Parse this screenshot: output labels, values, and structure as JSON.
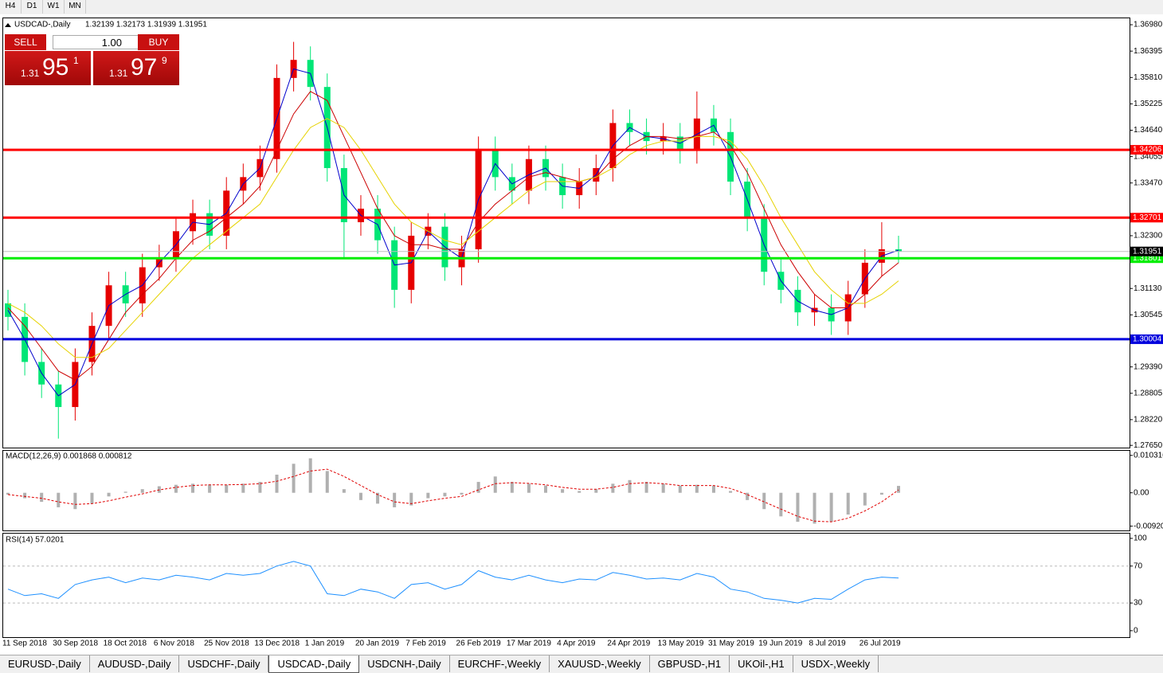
{
  "toolbar": [
    "H4",
    "D1",
    "W1",
    "MN"
  ],
  "trade_panel": {
    "sell": "SELL",
    "lot": "1.00",
    "buy": "BUY",
    "bid": {
      "big": "1.31",
      "main": "95",
      "small": "1"
    },
    "ask": {
      "big": "1.31",
      "main": "97",
      "small": "9"
    }
  },
  "chart_data": [
    {
      "type": "candlestick",
      "title": "USDCAD-,Daily",
      "ohlc_text": "1.32139 1.32173 1.31939 1.31951",
      "categories": [
        "11 Sep 2018",
        null,
        null,
        "30 Sep 2018",
        null,
        null,
        "18 Oct 2018",
        null,
        null,
        "6 Nov 2018",
        null,
        null,
        "25 Nov 2018",
        null,
        null,
        "13 Dec 2018",
        null,
        null,
        "1 Jan 2019",
        null,
        null,
        "20 Jan 2019",
        null,
        null,
        "7 Feb 2019",
        null,
        null,
        "26 Feb 2019",
        null,
        null,
        "17 Mar 2019",
        null,
        null,
        "4 Apr 2019",
        null,
        null,
        "24 Apr 2019",
        null,
        null,
        "13 May 2019",
        null,
        null,
        "31 May 2019",
        null,
        null,
        "19 Jun 2019",
        null,
        null,
        "8 Jul 2019",
        null,
        null,
        "26 Jul 2019",
        null,
        null
      ],
      "open": [
        1.308,
        1.305,
        1.295,
        1.29,
        1.285,
        1.295,
        1.303,
        1.312,
        1.308,
        1.316,
        1.318,
        1.324,
        1.328,
        1.323,
        1.333,
        1.336,
        1.34,
        1.358,
        1.362,
        1.356,
        1.338,
        1.326,
        1.329,
        1.322,
        1.311,
        1.323,
        1.325,
        1.316,
        1.32,
        1.342,
        1.336,
        1.333,
        1.34,
        1.336,
        1.332,
        1.335,
        1.338,
        1.348,
        1.346,
        1.344,
        1.345,
        1.342,
        1.349,
        1.346,
        1.335,
        1.327,
        1.315,
        1.311,
        1.306,
        1.307,
        1.304,
        1.31,
        1.317,
        1.32
      ],
      "high": [
        1.311,
        1.308,
        1.298,
        1.293,
        1.298,
        1.306,
        1.315,
        1.315,
        1.319,
        1.321,
        1.327,
        1.331,
        1.331,
        1.336,
        1.339,
        1.343,
        1.361,
        1.366,
        1.365,
        1.359,
        1.341,
        1.332,
        1.332,
        1.325,
        1.326,
        1.328,
        1.328,
        1.323,
        1.345,
        1.345,
        1.339,
        1.343,
        1.343,
        1.339,
        1.338,
        1.341,
        1.351,
        1.351,
        1.349,
        1.348,
        1.348,
        1.355,
        1.352,
        1.349,
        1.338,
        1.33,
        1.318,
        1.314,
        1.31,
        1.31,
        1.313,
        1.32,
        1.326,
        1.323
      ],
      "low": [
        1.302,
        1.292,
        1.287,
        1.278,
        1.282,
        1.292,
        1.3,
        1.305,
        1.305,
        1.313,
        1.315,
        1.321,
        1.32,
        1.32,
        1.33,
        1.333,
        1.337,
        1.355,
        1.353,
        1.335,
        1.318,
        1.323,
        1.319,
        1.307,
        1.308,
        1.32,
        1.313,
        1.312,
        1.317,
        1.333,
        1.33,
        1.33,
        1.333,
        1.329,
        1.329,
        1.332,
        1.335,
        1.343,
        1.341,
        1.341,
        1.339,
        1.339,
        1.343,
        1.332,
        1.324,
        1.312,
        1.308,
        1.303,
        1.303,
        1.301,
        1.301,
        1.307,
        1.314,
        1.317
      ],
      "close": [
        1.305,
        1.295,
        1.29,
        1.285,
        1.295,
        1.303,
        1.312,
        1.308,
        1.316,
        1.318,
        1.324,
        1.328,
        1.323,
        1.333,
        1.336,
        1.34,
        1.358,
        1.362,
        1.356,
        1.338,
        1.326,
        1.329,
        1.322,
        1.311,
        1.323,
        1.325,
        1.316,
        1.32,
        1.342,
        1.336,
        1.333,
        1.34,
        1.336,
        1.332,
        1.335,
        1.338,
        1.348,
        1.346,
        1.344,
        1.345,
        1.342,
        1.349,
        1.346,
        1.335,
        1.327,
        1.315,
        1.311,
        1.306,
        1.307,
        1.304,
        1.31,
        1.317,
        1.32,
        1.3195
      ],
      "up_color": "#e60000",
      "down_color": "#00e676",
      "series": [
        {
          "color": "#0000cc",
          "values": [
            1.3065,
            1.3,
            1.2925,
            1.2875,
            1.29,
            1.299,
            1.3075,
            1.31,
            1.312,
            1.317,
            1.321,
            1.326,
            1.3255,
            1.328,
            1.3345,
            1.338,
            1.349,
            1.36,
            1.359,
            1.347,
            1.332,
            1.3275,
            1.3255,
            1.3165,
            1.317,
            1.324,
            1.3205,
            1.318,
            1.331,
            1.339,
            1.3345,
            1.3365,
            1.338,
            1.334,
            1.3335,
            1.3365,
            1.343,
            1.347,
            1.345,
            1.3445,
            1.3435,
            1.3455,
            1.3475,
            1.3405,
            1.331,
            1.321,
            1.313,
            1.3085,
            1.3065,
            1.3055,
            1.307,
            1.3135,
            1.3185,
            1.3198
          ]
        },
        {
          "color": "#cc0000",
          "values": [
            1.307,
            1.303,
            1.298,
            1.293,
            1.291,
            1.294,
            1.3,
            1.306,
            1.31,
            1.3135,
            1.318,
            1.322,
            1.324,
            1.327,
            1.33,
            1.334,
            1.342,
            1.35,
            1.355,
            1.353,
            1.345,
            1.337,
            1.329,
            1.323,
            1.321,
            1.321,
            1.32,
            1.32,
            1.326,
            1.33,
            1.333,
            1.336,
            1.337,
            1.336,
            1.335,
            1.336,
            1.34,
            1.343,
            1.345,
            1.345,
            1.3445,
            1.345,
            1.346,
            1.343,
            1.337,
            1.329,
            1.321,
            1.315,
            1.31,
            1.307,
            1.307,
            1.31,
            1.314,
            1.317
          ]
        },
        {
          "color": "#e6d200",
          "values": [
            1.308,
            1.306,
            1.303,
            1.299,
            1.296,
            1.296,
            1.298,
            1.302,
            1.306,
            1.31,
            1.314,
            1.318,
            1.321,
            1.324,
            1.327,
            1.33,
            1.336,
            1.342,
            1.347,
            1.349,
            1.347,
            1.342,
            1.336,
            1.33,
            1.326,
            1.324,
            1.322,
            1.321,
            1.324,
            1.327,
            1.33,
            1.333,
            1.335,
            1.335,
            1.335,
            1.336,
            1.338,
            1.341,
            1.343,
            1.344,
            1.344,
            1.345,
            1.345,
            1.344,
            1.34,
            1.334,
            1.327,
            1.321,
            1.315,
            1.311,
            1.308,
            1.308,
            1.31,
            1.313
          ]
        }
      ],
      "ylim": [
        1.276,
        1.3714
      ],
      "yticks": [
        {
          "value": 1.3698,
          "label": "1.36980"
        },
        {
          "value": 1.36395,
          "label": "1.36395"
        },
        {
          "value": 1.3581,
          "label": "1.35810"
        },
        {
          "value": 1.35225,
          "label": "1.35225"
        },
        {
          "value": 1.3464,
          "label": "1.34640"
        },
        {
          "value": 1.34055,
          "label": "1.34055"
        },
        {
          "value": 1.3347,
          "label": "1.33470"
        },
        {
          "value": 1.323,
          "label": "1.32300"
        },
        {
          "value": 1.3113,
          "label": "1.31130"
        },
        {
          "value": 1.30545,
          "label": "1.30545"
        },
        {
          "value": 1.2939,
          "label": "1.29390"
        },
        {
          "value": 1.28805,
          "label": "1.28805"
        },
        {
          "value": 1.2822,
          "label": "1.28220"
        },
        {
          "value": 1.2765,
          "label": "1.27650"
        }
      ],
      "levels": [
        {
          "value": 1.34206,
          "color": "#ff0000"
        },
        {
          "value": 1.32701,
          "color": "#ff0000"
        },
        {
          "value": 1.31801,
          "color": "#00ee00"
        },
        {
          "value": 1.30004,
          "color": "#0000dd"
        }
      ],
      "current_price": 1.31951
    },
    {
      "type": "macd",
      "title": "MACD(12,26,9) 0.001868 0.000812",
      "values": [
        -0.0005,
        -0.0015,
        -0.0025,
        -0.004,
        -0.0045,
        -0.003,
        -0.001,
        0.0003,
        0.001,
        0.0018,
        0.0022,
        0.0025,
        0.0023,
        0.0022,
        0.0025,
        0.003,
        0.005,
        0.008,
        0.0095,
        0.006,
        0.001,
        -0.002,
        -0.003,
        -0.004,
        -0.0035,
        -0.0015,
        -0.001,
        -0.0005,
        0.003,
        0.0045,
        0.003,
        0.0025,
        0.002,
        0.001,
        0.0005,
        0.001,
        0.0025,
        0.0035,
        0.003,
        0.0025,
        0.002,
        0.0022,
        0.002,
        0.0005,
        -0.002,
        -0.0045,
        -0.0065,
        -0.008,
        -0.0085,
        -0.008,
        -0.006,
        -0.0035,
        -0.0005,
        0.0019
      ],
      "signal": [
        -0.0005,
        -0.001,
        -0.0015,
        -0.0025,
        -0.0032,
        -0.003,
        -0.0022,
        -0.0012,
        -0.0003,
        0.0008,
        0.0015,
        0.002,
        0.0022,
        0.0022,
        0.0023,
        0.0025,
        0.0032,
        0.0045,
        0.006,
        0.0065,
        0.0045,
        0.002,
        -0.0005,
        -0.0025,
        -0.003,
        -0.0022,
        -0.0015,
        -0.001,
        0.0008,
        0.0025,
        0.0028,
        0.0026,
        0.0022,
        0.0015,
        0.001,
        0.001,
        0.0015,
        0.0025,
        0.0028,
        0.0025,
        0.002,
        0.002,
        0.002,
        0.0012,
        -0.0005,
        -0.0025,
        -0.0045,
        -0.0065,
        -0.0078,
        -0.008,
        -0.007,
        -0.005,
        -0.0025,
        0.0008
      ],
      "color": "#b0b0b0",
      "signal_color": "#e00000",
      "ylim": [
        -0.0106,
        0.0118
      ],
      "yticks": [
        0.010316,
        {
          "value": 0,
          "label": "0.00"
        },
        {
          "value": -0.0092,
          "label": "-0.00920"
        }
      ]
    },
    {
      "type": "line",
      "title": "RSI(14) 57.0201",
      "color": "#1e90ff",
      "values": [
        45,
        38,
        40,
        35,
        50,
        55,
        58,
        52,
        57,
        55,
        60,
        58,
        55,
        62,
        60,
        62,
        70,
        75,
        70,
        40,
        38,
        45,
        42,
        35,
        50,
        52,
        45,
        50,
        65,
        58,
        55,
        60,
        55,
        52,
        56,
        55,
        63,
        60,
        56,
        57,
        55,
        62,
        58,
        45,
        42,
        35,
        33,
        30,
        35,
        34,
        45,
        55,
        58,
        57
      ],
      "ylim": [
        -7,
        106
      ],
      "yticks": [
        100,
        70,
        30,
        0
      ],
      "levels": [
        70,
        30
      ]
    }
  ],
  "tabs": [
    "EURUSD-,Daily",
    "AUDUSD-,Daily",
    "USDCHF-,Daily",
    "USDCAD-,Daily",
    "USDCNH-,Daily",
    "EURCHF-,Weekly",
    "XAUUSD-,Weekly",
    "GBPUSD-,H1",
    "UKOil-,H1",
    "USDX-,Weekly"
  ],
  "active_tab": 3
}
